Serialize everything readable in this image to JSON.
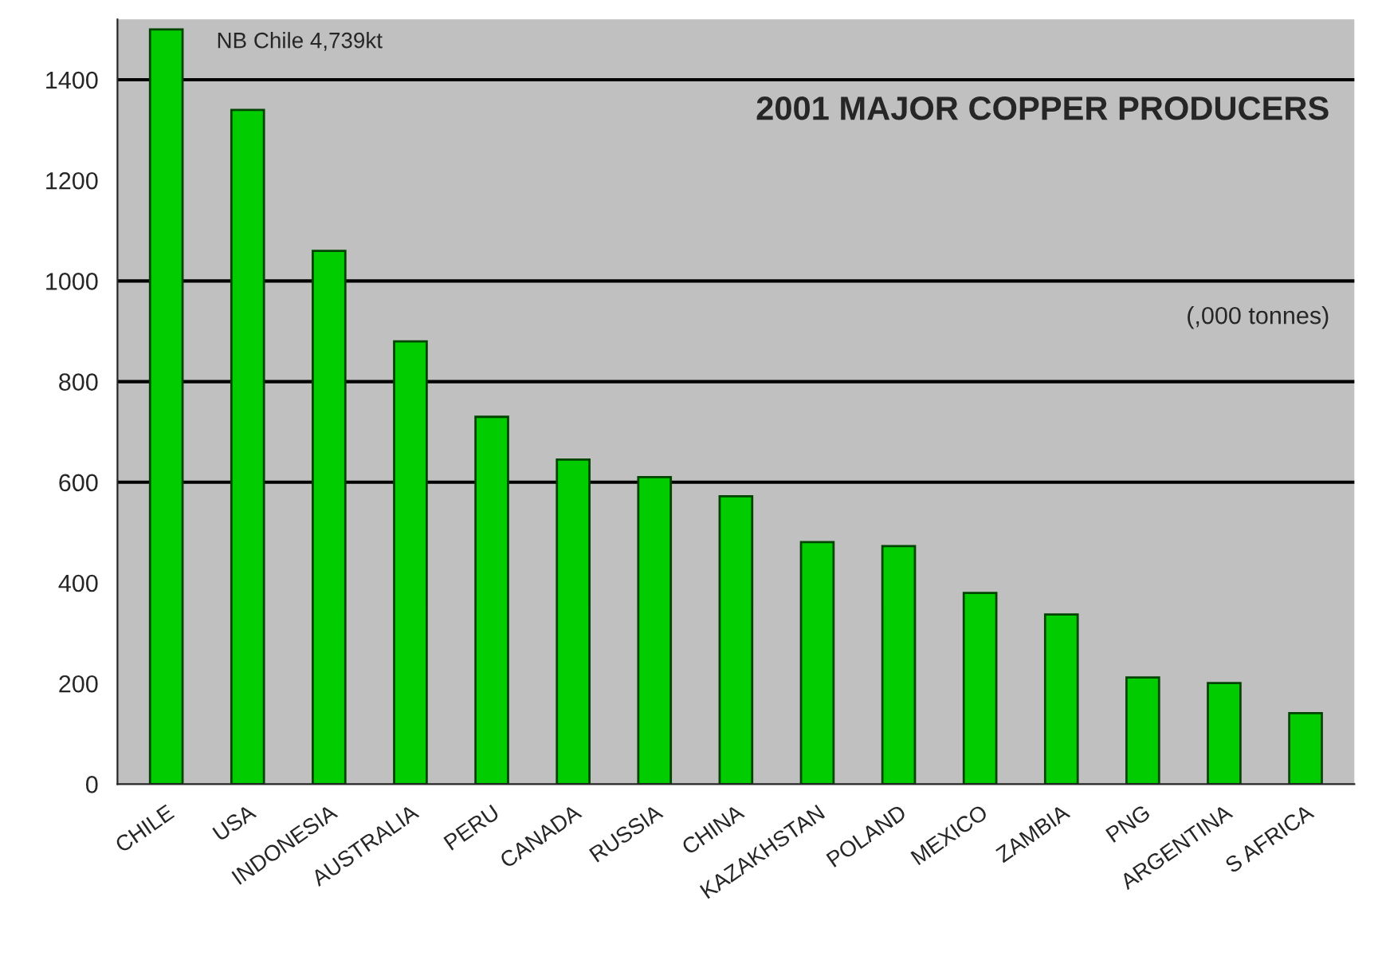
{
  "chart_data": {
    "type": "bar",
    "title": "2001 MAJOR COPPER PRODUCERS",
    "categories": [
      "CHILE",
      "USA",
      "INDONESIA",
      "AUSTRALIA",
      "PERU",
      "CANADA",
      "RUSSIA",
      "CHINA",
      "KAZAKHSTAN",
      "POLAND",
      "MEXICO",
      "ZAMBIA",
      "PNG",
      "ARGENTINA",
      "S AFRICA"
    ],
    "values": [
      1500,
      1340,
      1060,
      880,
      730,
      645,
      610,
      572,
      481,
      473,
      380,
      337,
      212,
      201,
      141
    ],
    "color": "#00cc00",
    "ylim": [
      0,
      1520
    ],
    "yticks": [
      0,
      200,
      400,
      600,
      800,
      1000,
      1200,
      1400
    ],
    "ref_lines": [
      {
        "axis": "y",
        "value": 600,
        "color": "#000000"
      },
      {
        "axis": "y",
        "value": 800,
        "color": "#000000"
      },
      {
        "axis": "y",
        "value": 1000,
        "color": "#000000"
      },
      {
        "axis": "y",
        "value": 1400,
        "color": "#000000"
      }
    ],
    "annotations": [
      "NB Chile 4,739kt",
      "(,000 tonnes)"
    ]
  }
}
